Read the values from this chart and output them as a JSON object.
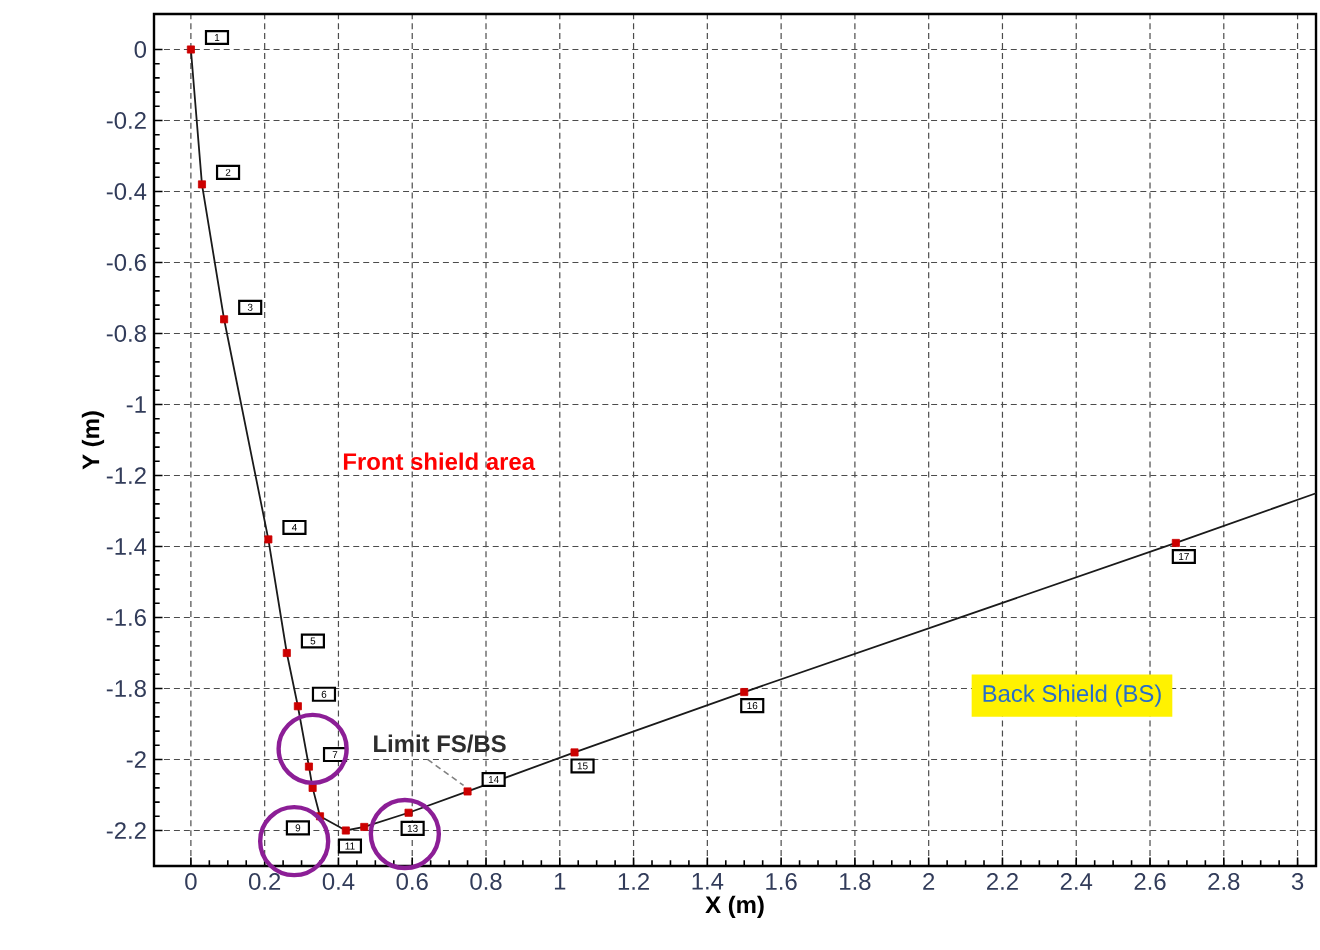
{
  "chart_data": {
    "type": "line",
    "xlabel": "X (m)",
    "ylabel": "Y (m)",
    "xlim": [
      -0.1,
      3.05
    ],
    "ylim": [
      -2.3,
      0.1
    ],
    "xticks": [
      0,
      0.2,
      0.4,
      0.6,
      0.8,
      1,
      1.2,
      1.4,
      1.6,
      1.8,
      2,
      2.2,
      2.4,
      2.6,
      2.8,
      3
    ],
    "yticks": [
      0,
      -0.2,
      -0.4,
      -0.6,
      -0.8,
      -1,
      -1.2,
      -1.4,
      -1.6,
      -1.8,
      -2,
      -2.2
    ],
    "grid": true,
    "series": [
      {
        "color": "#1a1a1a",
        "marker": "none",
        "x": [
          0,
          0.03,
          0.09,
          0.21,
          0.26,
          0.29,
          0.32,
          0.33,
          0.35,
          0.42,
          0.47,
          0.59,
          0.75,
          1.04,
          1.5,
          2.67,
          3.05
        ],
        "values": [
          0,
          -0.38,
          -0.76,
          -1.38,
          -1.7,
          -1.85,
          -2.02,
          -2.08,
          -2.16,
          -2.2,
          -2.19,
          -2.15,
          -2.09,
          -1.98,
          -1.81,
          -1.39,
          -1.25
        ]
      },
      {
        "type": "scatter",
        "color": "#cc0000",
        "marker": "square",
        "x": [
          0,
          0.03,
          0.09,
          0.21,
          0.26,
          0.29,
          0.32,
          0.33,
          0.35,
          0.42,
          0.47,
          0.59,
          0.75,
          1.04,
          1.5,
          2.67
        ],
        "values": [
          0,
          -0.38,
          -0.76,
          -1.38,
          -1.7,
          -1.85,
          -2.02,
          -2.08,
          -2.16,
          -2.2,
          -2.19,
          -2.15,
          -2.09,
          -1.98,
          -1.81,
          -1.39
        ]
      }
    ],
    "annotations": [
      "Front shield area",
      "Back Shield (BS)",
      {
        "text": "Limit FS/BS",
        "x": 0.75,
        "y": -2.09
      },
      {
        "text": "1",
        "x": 0,
        "y": 0
      },
      {
        "text": "2",
        "x": 0.03,
        "y": -0.38
      },
      {
        "text": "3",
        "x": 0.09,
        "y": -0.76
      },
      {
        "text": "4",
        "x": 0.21,
        "y": -1.38
      },
      {
        "text": "5",
        "x": 0.26,
        "y": -1.7
      },
      {
        "text": "6",
        "x": 0.29,
        "y": -1.85
      },
      {
        "text": "7",
        "x": 0.32,
        "y": -2.02
      },
      {
        "text": "9",
        "x": 0.35,
        "y": -2.16
      },
      {
        "text": "11",
        "x": 0.42,
        "y": -2.2
      },
      {
        "text": "13",
        "x": 0.59,
        "y": -2.15
      },
      {
        "text": "14",
        "x": 0.75,
        "y": -2.09
      },
      {
        "text": "15",
        "x": 1.04,
        "y": -1.98
      },
      {
        "text": "16",
        "x": 1.5,
        "y": -1.81
      },
      {
        "text": "17",
        "x": 2.67,
        "y": -1.39
      }
    ]
  }
}
